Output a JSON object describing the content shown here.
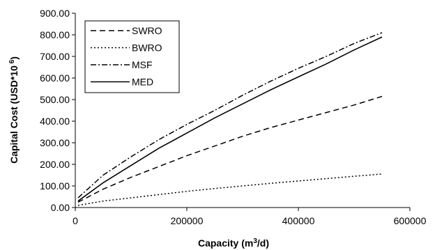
{
  "chart_data": {
    "type": "line",
    "title": "",
    "xlabel_main": "Capacity (m",
    "xlabel_sup": "3",
    "xlabel_tail": "/d)",
    "ylabel_main": "Capital Cost  (USD*10",
    "ylabel_sup": " 6",
    "ylabel_tail": ")",
    "xlim": [
      0,
      600000
    ],
    "ylim": [
      0,
      900
    ],
    "x_ticks": [
      0,
      200000,
      400000,
      600000
    ],
    "x_tick_labels": [
      "0",
      "200000",
      "400000",
      "600000"
    ],
    "y_ticks": [
      0,
      100,
      200,
      300,
      400,
      500,
      600,
      700,
      800,
      900
    ],
    "y_tick_labels": [
      "0.00",
      "100.00",
      "200.00",
      "300.00",
      "400.00",
      "500.00",
      "600.00",
      "700.00",
      "800.00",
      "900.00"
    ],
    "grid": false,
    "legend": "top-left",
    "series": [
      {
        "name": "SWRO",
        "dash": "dashed",
        "x": [
          5000,
          50000,
          100000,
          150000,
          200000,
          250000,
          300000,
          350000,
          400000,
          450000,
          500000,
          550000
        ],
        "y": [
          25,
          85,
          140,
          190,
          240,
          285,
          330,
          370,
          405,
          440,
          475,
          515
        ]
      },
      {
        "name": "BWRO",
        "dash": "dotted",
        "x": [
          5000,
          50000,
          100000,
          150000,
          200000,
          250000,
          300000,
          350000,
          400000,
          450000,
          500000,
          550000
        ],
        "y": [
          10,
          30,
          45,
          60,
          75,
          88,
          100,
          112,
          123,
          134,
          145,
          155
        ]
      },
      {
        "name": "MSF",
        "dash": "dashdot",
        "x": [
          5000,
          50000,
          100000,
          150000,
          200000,
          250000,
          300000,
          350000,
          400000,
          450000,
          500000,
          550000
        ],
        "y": [
          45,
          150,
          235,
          315,
          385,
          450,
          520,
          585,
          645,
          700,
          760,
          810
        ]
      },
      {
        "name": "MED",
        "dash": "solid",
        "x": [
          5000,
          50000,
          100000,
          150000,
          200000,
          250000,
          300000,
          350000,
          400000,
          450000,
          500000,
          550000
        ],
        "y": [
          30,
          115,
          195,
          275,
          345,
          415,
          480,
          545,
          605,
          665,
          730,
          790
        ]
      }
    ]
  }
}
